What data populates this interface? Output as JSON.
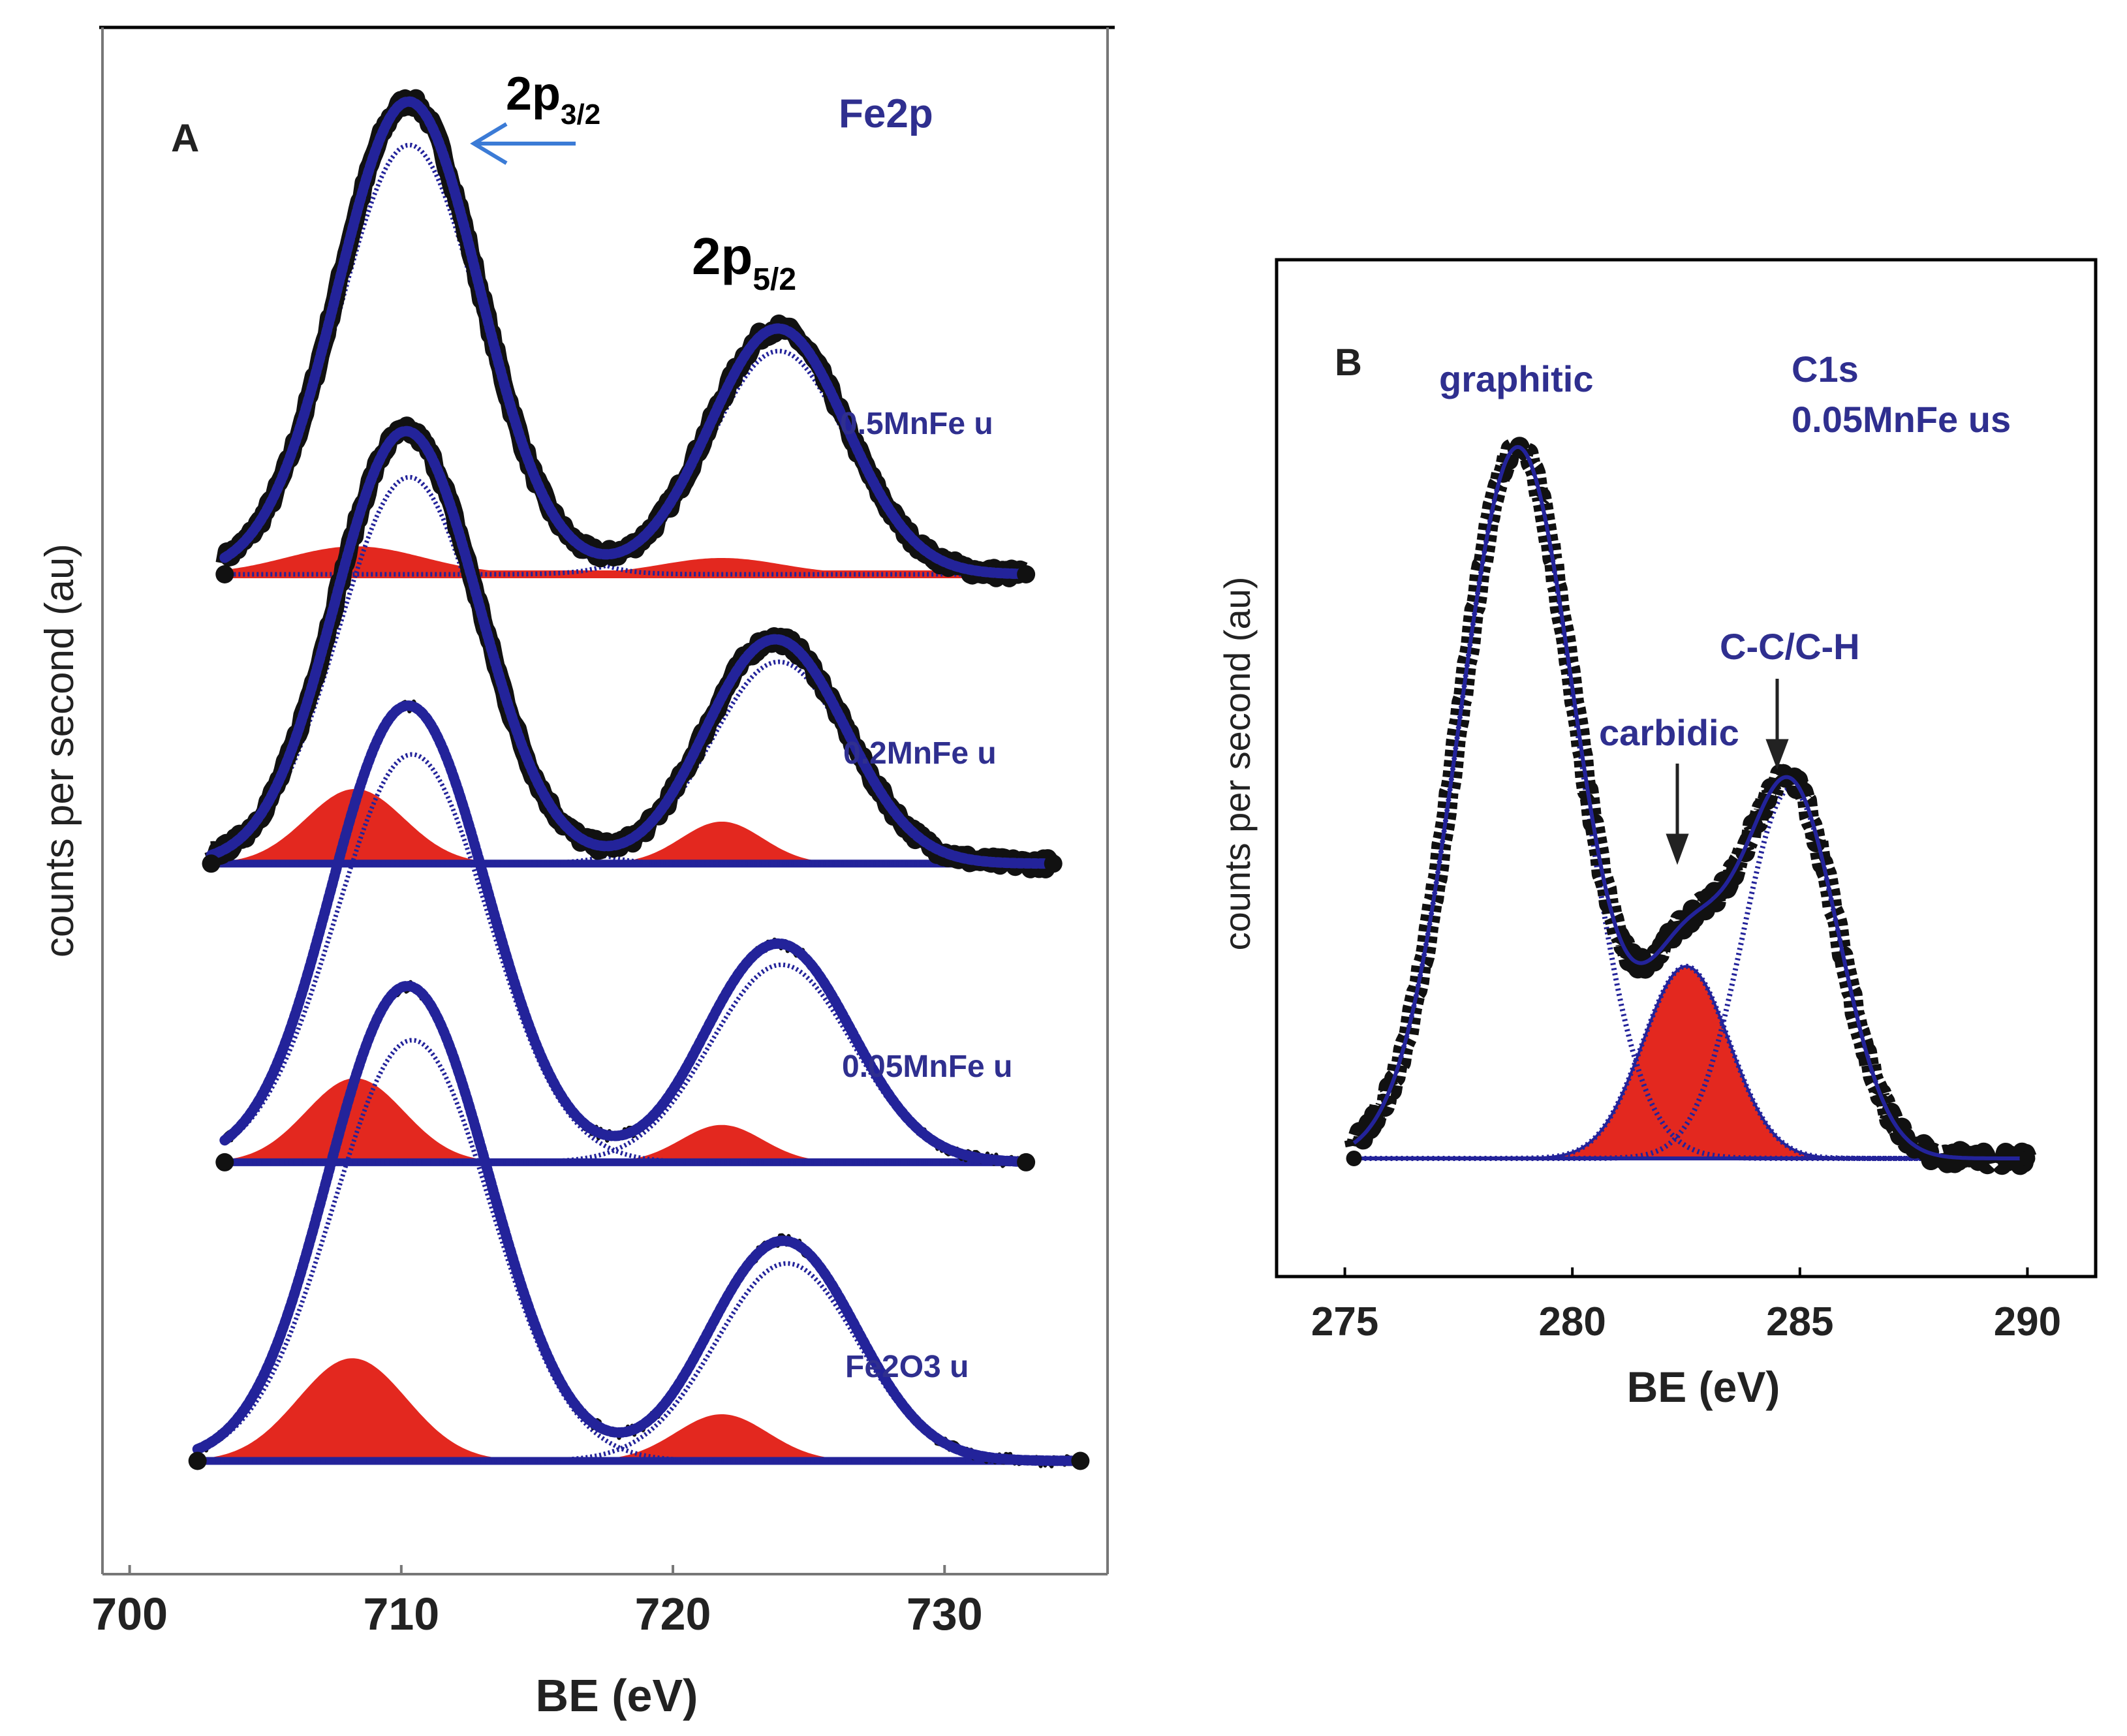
{
  "chart_data": [
    {
      "panel": "A",
      "type": "line",
      "title": "Fe2p",
      "xlabel": "BE (eV)",
      "ylabel": "counts per second (au)",
      "xlim": [
        699,
        736
      ],
      "xticks": [
        700,
        710,
        720,
        730
      ],
      "grid": false,
      "annotations": [
        {
          "text_main": "2p",
          "text_sub": "3/2",
          "x": 711.2,
          "arrow": true
        },
        {
          "text_main": "2p",
          "text_sub": "5/2",
          "x": 724.5,
          "arrow": false
        }
      ],
      "series_colors": {
        "raw": "#111111",
        "fit": "#23239a",
        "component": "#e3281f"
      },
      "spectra": [
        {
          "name": "0.5MnFe u",
          "offset": 0.0,
          "x_range": [
            703.5,
            733.0
          ],
          "peaks": [
            {
              "center": 710.3,
              "height": 1.0,
              "width": 2.6
            },
            {
              "center": 723.9,
              "height": 0.52,
              "width": 2.5
            }
          ],
          "components": [
            {
              "center": 708.3,
              "height": 0.06,
              "width": 2.5
            },
            {
              "center": 721.8,
              "height": 0.035,
              "width": 2.2
            }
          ]
        },
        {
          "name": "0.2MnFe u",
          "offset": -0.62,
          "x_range": [
            703.0,
            734.0
          ],
          "peaks": [
            {
              "center": 710.3,
              "height": 0.9,
              "width": 2.6
            },
            {
              "center": 723.9,
              "height": 0.47,
              "width": 2.5
            }
          ],
          "components": [
            {
              "center": 708.3,
              "height": 0.16,
              "width": 1.8
            },
            {
              "center": 721.8,
              "height": 0.09,
              "width": 1.5
            }
          ]
        },
        {
          "name": "0.05MnFe u",
          "offset": -1.26,
          "x_range": [
            703.5,
            733.0
          ],
          "peaks": [
            {
              "center": 710.4,
              "height": 0.95,
              "width": 2.8
            },
            {
              "center": 724.0,
              "height": 0.46,
              "width": 2.6
            }
          ],
          "components": [
            {
              "center": 708.3,
              "height": 0.18,
              "width": 1.8
            },
            {
              "center": 721.8,
              "height": 0.08,
              "width": 1.5
            }
          ]
        },
        {
          "name": "Fe2O3 u",
          "offset": -1.9,
          "x_range": [
            702.5,
            735.0
          ],
          "peaks": [
            {
              "center": 710.4,
              "height": 0.98,
              "width": 2.9
            },
            {
              "center": 724.2,
              "height": 0.46,
              "width": 2.6
            }
          ],
          "components": [
            {
              "center": 708.2,
              "height": 0.22,
              "width": 2.0
            },
            {
              "center": 721.8,
              "height": 0.1,
              "width": 1.7
            }
          ]
        }
      ]
    },
    {
      "panel": "B",
      "type": "line",
      "title": "C1s",
      "subtitle": "0.05MnFe us",
      "xlabel": "BE (eV)",
      "ylabel": "counts per second (au)",
      "xlim": [
        273.5,
        291.5
      ],
      "xticks": [
        275,
        280,
        285,
        290
      ],
      "grid": false,
      "annotations": [
        {
          "text": "graphitic",
          "x": 278.7,
          "arrow": false
        },
        {
          "text": "carbidic",
          "x": 282.2,
          "arrow": true
        },
        {
          "text": "C-C/C-H",
          "x": 284.6,
          "arrow": true
        }
      ],
      "series_colors": {
        "raw": "#111111",
        "fit": "#23239a",
        "component": "#e3281f"
      },
      "x_range": [
        275.2,
        290.0
      ],
      "peaks": [
        {
          "name": "graphitic",
          "center": 278.8,
          "height": 1.0,
          "width": 1.3
        },
        {
          "name": "carbidic",
          "center": 282.5,
          "height": 0.27,
          "width": 0.95
        },
        {
          "name": "C-C/C-H",
          "center": 284.8,
          "height": 0.52,
          "width": 1.05
        }
      ],
      "fill_component": "carbidic"
    }
  ]
}
